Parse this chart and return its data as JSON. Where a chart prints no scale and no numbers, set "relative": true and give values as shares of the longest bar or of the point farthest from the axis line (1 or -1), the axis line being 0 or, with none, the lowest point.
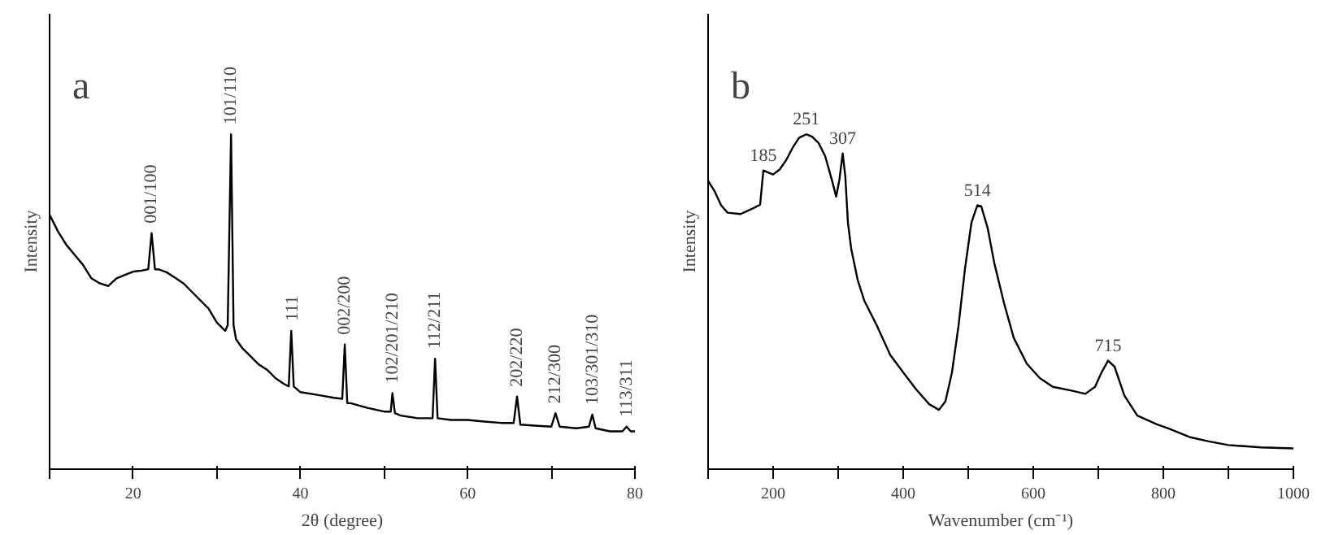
{
  "chart_data": [
    {
      "type": "line",
      "title": "a",
      "xlabel": "2θ (degree)",
      "ylabel": "Intensity",
      "relative": true,
      "xlim": [
        10,
        80
      ],
      "xticks": [
        {
          "value": 10,
          "label": null
        },
        20,
        {
          "value": 30,
          "label": null
        },
        40,
        {
          "value": 50,
          "label": null
        },
        60,
        {
          "value": 70,
          "label": null
        },
        80
      ],
      "series": [
        {
          "color": "#000000",
          "x": [
            10,
            11,
            12,
            13,
            14,
            15,
            16,
            17,
            18,
            19,
            20,
            21,
            21.8,
            22.2,
            22.6,
            23,
            24,
            25,
            26,
            27,
            28,
            29,
            30,
            31,
            31.3,
            31.7,
            32.0,
            32.3,
            33,
            34,
            35,
            36,
            37,
            38,
            38.6,
            38.9,
            39.2,
            40,
            42,
            44,
            45.0,
            45.3,
            45.6,
            46,
            48,
            50,
            50.8,
            51.0,
            51.3,
            52,
            54,
            55.8,
            56.1,
            56.4,
            58,
            60,
            62,
            64,
            65.5,
            65.9,
            66.3,
            68,
            70,
            70.5,
            71,
            73,
            74.5,
            74.9,
            75.3,
            77,
            78.5,
            79,
            79.5,
            80
          ],
          "values": [
            0.76,
            0.71,
            0.67,
            0.64,
            0.61,
            0.57,
            0.555,
            0.547,
            0.57,
            0.58,
            0.59,
            0.593,
            0.597,
            0.705,
            0.597,
            0.597,
            0.588,
            0.572,
            0.555,
            0.53,
            0.505,
            0.48,
            0.438,
            0.413,
            0.43,
            1.0,
            0.43,
            0.388,
            0.363,
            0.338,
            0.313,
            0.297,
            0.272,
            0.255,
            0.247,
            0.413,
            0.247,
            0.23,
            0.222,
            0.213,
            0.21,
            0.372,
            0.197,
            0.197,
            0.183,
            0.172,
            0.172,
            0.227,
            0.167,
            0.16,
            0.152,
            0.152,
            0.33,
            0.152,
            0.147,
            0.147,
            0.142,
            0.138,
            0.138,
            0.217,
            0.133,
            0.13,
            0.127,
            0.167,
            0.127,
            0.122,
            0.127,
            0.163,
            0.122,
            0.113,
            0.113,
            0.127,
            0.113,
            0.113
          ]
        }
      ],
      "annotations": [
        {
          "text": "001/100",
          "x": 22.2,
          "y": 0.705
        },
        {
          "text": "101/110",
          "x": 31.7,
          "y": 1.0
        },
        {
          "text": "111",
          "x": 38.9,
          "y": 0.413
        },
        {
          "text": "002/200",
          "x": 45.3,
          "y": 0.372
        },
        {
          "text": "102/201/210",
          "x": 51.0,
          "y": 0.227
        },
        {
          "text": "112/211",
          "x": 56.1,
          "y": 0.33
        },
        {
          "text": "202/220",
          "x": 65.9,
          "y": 0.217
        },
        {
          "text": "212/300",
          "x": 70.5,
          "y": 0.167
        },
        {
          "text": "103/301/310",
          "x": 74.9,
          "y": 0.163
        },
        {
          "text": "113/311",
          "x": 79.0,
          "y": 0.127
        }
      ]
    },
    {
      "type": "line",
      "title": "b",
      "xlabel": "Wavenumber (cm⁻¹)",
      "ylabel": "Intensity",
      "relative": true,
      "xlim": [
        100,
        1000
      ],
      "xticks": [
        {
          "value": 100,
          "label": null
        },
        200,
        {
          "value": 300,
          "label": null
        },
        400,
        {
          "value": 500,
          "label": null
        },
        600,
        {
          "value": 700,
          "label": null
        },
        800,
        {
          "value": 900,
          "label": null
        },
        1000
      ],
      "series": [
        {
          "color": "#000000",
          "x": [
            100,
            110,
            120,
            130,
            150,
            170,
            180,
            185,
            190,
            200,
            210,
            220,
            230,
            240,
            251,
            260,
            270,
            280,
            290,
            297,
            302,
            307,
            311,
            315,
            320,
            330,
            340,
            360,
            380,
            400,
            420,
            440,
            455,
            465,
            475,
            485,
            495,
            505,
            514,
            520,
            530,
            540,
            555,
            570,
            590,
            610,
            630,
            660,
            680,
            695,
            705,
            715,
            725,
            740,
            760,
            790,
            810,
            840,
            870,
            900,
            950,
            1000
          ],
          "values": [
            0.861,
            0.83,
            0.788,
            0.766,
            0.762,
            0.78,
            0.79,
            0.892,
            0.888,
            0.88,
            0.895,
            0.923,
            0.96,
            0.99,
            1.0,
            0.993,
            0.974,
            0.935,
            0.866,
            0.814,
            0.866,
            0.943,
            0.874,
            0.737,
            0.659,
            0.565,
            0.504,
            0.427,
            0.341,
            0.289,
            0.238,
            0.194,
            0.177,
            0.203,
            0.289,
            0.427,
            0.599,
            0.737,
            0.788,
            0.785,
            0.719,
            0.616,
            0.496,
            0.392,
            0.315,
            0.272,
            0.246,
            0.234,
            0.225,
            0.246,
            0.289,
            0.324,
            0.306,
            0.22,
            0.16,
            0.134,
            0.12,
            0.096,
            0.083,
            0.072,
            0.065,
            0.062
          ]
        }
      ],
      "annotations": [
        {
          "text": "185",
          "x": 185,
          "y": 0.892
        },
        {
          "text": "251",
          "x": 251,
          "y": 1.0
        },
        {
          "text": "307",
          "x": 307,
          "y": 0.943
        },
        {
          "text": "514",
          "x": 514,
          "y": 0.788
        },
        {
          "text": "715",
          "x": 715,
          "y": 0.324
        }
      ]
    }
  ]
}
